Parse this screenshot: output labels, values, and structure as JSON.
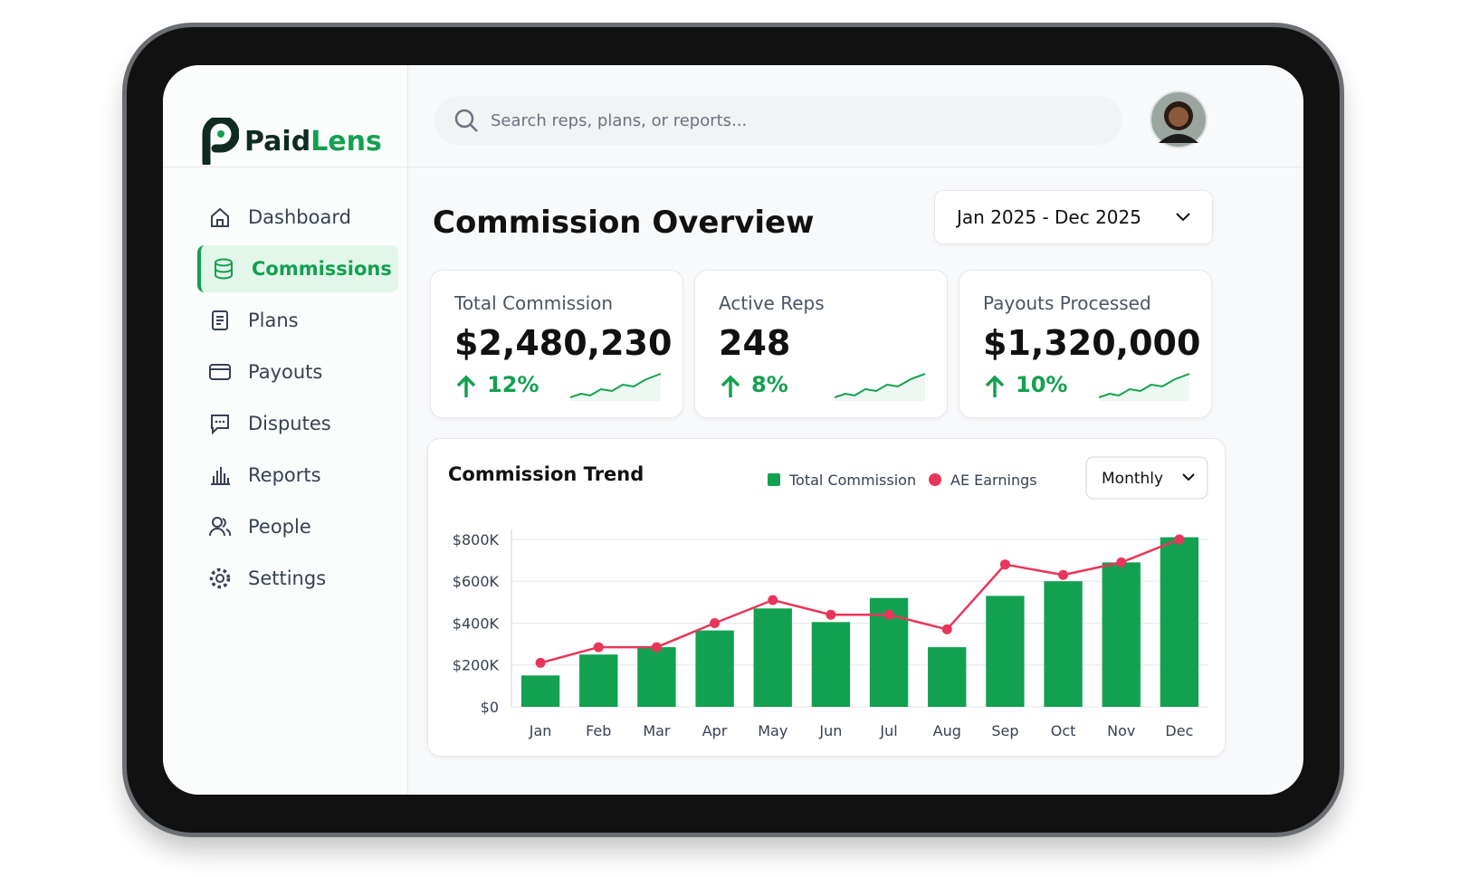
{
  "brand": {
    "first": "Paid",
    "second": "Lens"
  },
  "search": {
    "placeholder": "Search reps, plans, or reports..."
  },
  "nav": [
    {
      "label": "Dashboard",
      "active": false
    },
    {
      "label": "Commissions",
      "active": true
    },
    {
      "label": "Plans",
      "active": false
    },
    {
      "label": "Payouts",
      "active": false
    },
    {
      "label": "Disputes",
      "active": false
    },
    {
      "label": "Reports",
      "active": false
    },
    {
      "label": "People",
      "active": false
    },
    {
      "label": "Settings",
      "active": false
    }
  ],
  "page": {
    "title": "Commission Overview",
    "date_range": "Jan 2025 - Dec 2025"
  },
  "kpis": [
    {
      "label": "Total Commission",
      "value": "$2,480,230",
      "change": "12%"
    },
    {
      "label": "Active Reps",
      "value": "248",
      "change": "8%"
    },
    {
      "label": "Payouts Processed",
      "value": "$1,320,000",
      "change": "10%"
    }
  ],
  "chart_data": {
    "type": "bar",
    "title": "Commission Trend",
    "period": "Monthly",
    "categories": [
      "Jan",
      "Feb",
      "Mar",
      "Apr",
      "May",
      "Jun",
      "Jul",
      "Aug",
      "Sep",
      "Oct",
      "Nov",
      "Dec"
    ],
    "series": [
      {
        "name": "Total Commission",
        "type": "bar",
        "color": "#12a150",
        "values": [
          150000,
          250000,
          285000,
          365000,
          470000,
          405000,
          520000,
          285000,
          530000,
          600000,
          690000,
          810000
        ]
      },
      {
        "name": "AE Earnings",
        "type": "line",
        "color": "#e8365a",
        "values": [
          210000,
          285000,
          285000,
          400000,
          510000,
          440000,
          440000,
          370000,
          680000,
          630000,
          690000,
          800000
        ]
      }
    ],
    "ylim": [
      0,
      830000
    ],
    "yticks": [
      {
        "value": 0,
        "label": "$0"
      },
      {
        "value": 200000,
        "label": "$200K"
      },
      {
        "value": 400000,
        "label": "$400K"
      },
      {
        "value": 600000,
        "label": "$600K"
      },
      {
        "value": 800000,
        "label": "$800K"
      }
    ],
    "grid": true
  }
}
